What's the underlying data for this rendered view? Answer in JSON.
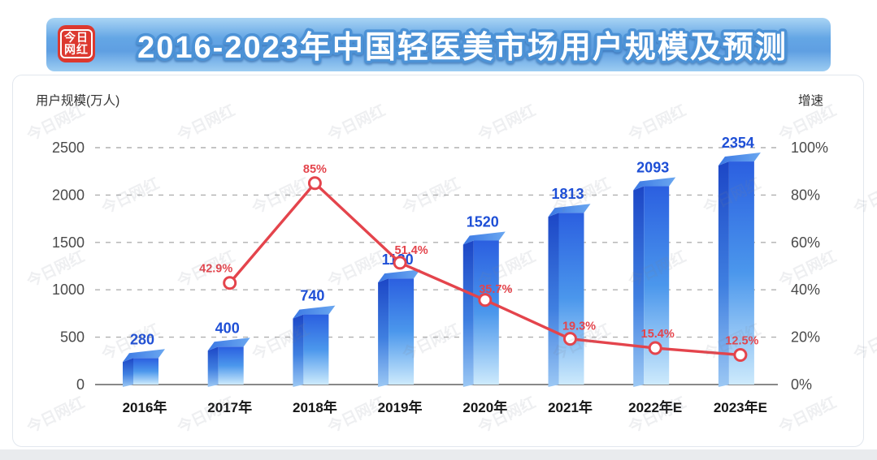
{
  "title": {
    "text": "2016-2023年中国轻医美市场用户规模及预测"
  },
  "logo": {
    "line1": "今日",
    "line2": "网红"
  },
  "watermark": {
    "text": "今日网红"
  },
  "chart_data": {
    "type": "bar",
    "title": "2016-2023年中国轻医美市场用户规模及预测",
    "categories": [
      "2016年",
      "2017年",
      "2018年",
      "2019年",
      "2020年",
      "2021年",
      "2022年E",
      "2023年E"
    ],
    "series": [
      {
        "name": "用户规模",
        "type": "bar",
        "axis": "left",
        "values": [
          280,
          400,
          740,
          1120,
          1520,
          1813,
          2093,
          2354
        ],
        "value_labels": [
          "280",
          "400",
          "740",
          "1120",
          "1520",
          "1813",
          "2093",
          "2354"
        ],
        "label_color": "#1e4fd6",
        "color_top": "#2b5fe0",
        "color_mid": "#4b97ec",
        "color_bottom": "#cdeafc"
      },
      {
        "name": "增速",
        "type": "line",
        "axis": "right",
        "values": [
          null,
          42.9,
          85,
          51.4,
          35.7,
          19.3,
          15.4,
          12.5
        ],
        "point_labels": [
          null,
          "42.9%",
          "85%",
          "51.4%",
          "35.7%",
          "19.3%",
          "15.4%",
          "12.5%"
        ],
        "color": "#e4444c",
        "marker": "open-circle"
      }
    ],
    "left_axis": {
      "title": "用户规模(万人)",
      "min": 0,
      "max": 2500,
      "ticks": [
        "2500",
        "2000",
        "1500",
        "1000",
        "500",
        "0"
      ]
    },
    "right_axis": {
      "title": "增速",
      "min": 0,
      "max": 100,
      "ticks": [
        "100%",
        "80%",
        "60%",
        "40%",
        "20%",
        "0%"
      ]
    },
    "grid": "dashed-horizontal",
    "legend_position": "none"
  }
}
